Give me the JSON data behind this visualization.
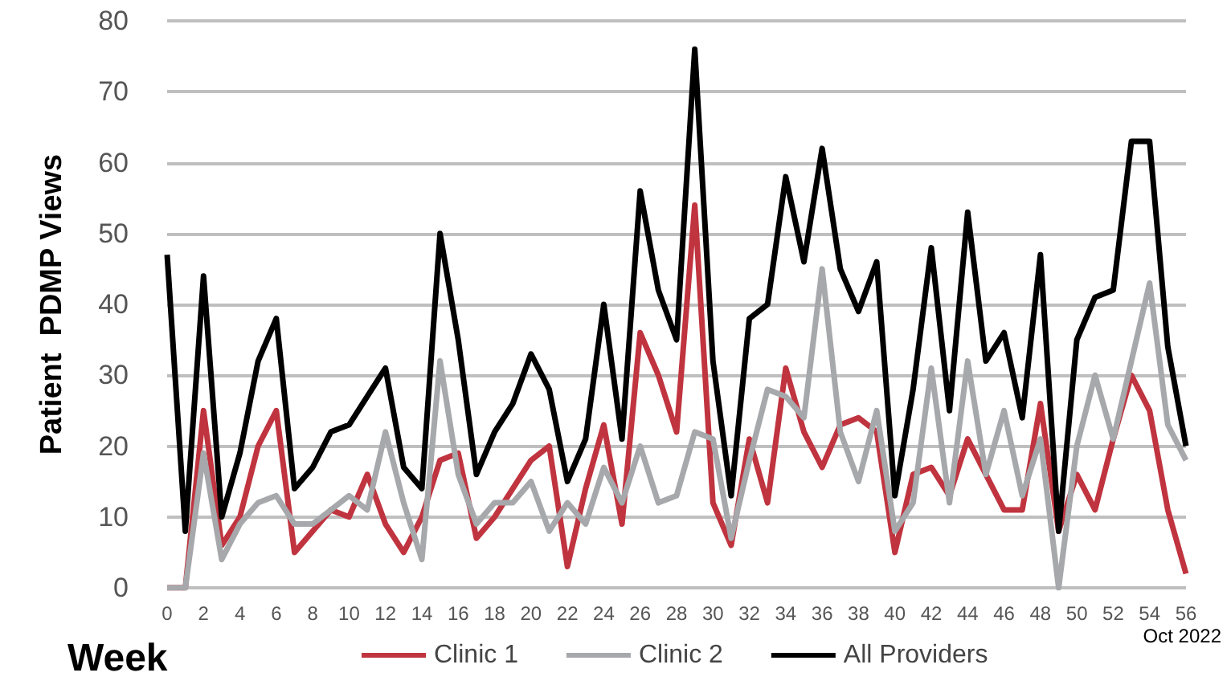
{
  "chart_data": {
    "type": "line",
    "xlabel": "Week",
    "ylabel": "Patient  PDMP Views",
    "annotations": [
      "Oct 2022"
    ],
    "x": [
      0,
      1,
      2,
      3,
      4,
      5,
      6,
      7,
      8,
      9,
      10,
      11,
      12,
      13,
      14,
      15,
      16,
      17,
      18,
      19,
      20,
      21,
      22,
      23,
      24,
      25,
      26,
      27,
      28,
      29,
      30,
      31,
      32,
      33,
      34,
      35,
      36,
      37,
      38,
      39,
      40,
      41,
      42,
      43,
      44,
      45,
      46,
      47,
      48,
      49,
      50,
      51,
      52,
      53,
      54,
      55,
      56
    ],
    "xlim": [
      0,
      56
    ],
    "xticks": [
      0,
      2,
      4,
      6,
      8,
      10,
      12,
      14,
      16,
      18,
      20,
      22,
      24,
      26,
      28,
      30,
      32,
      34,
      36,
      38,
      40,
      42,
      44,
      46,
      48,
      50,
      52,
      54,
      56
    ],
    "ylim": [
      0,
      80
    ],
    "yticks": [
      0,
      10,
      20,
      30,
      40,
      50,
      60,
      70,
      80
    ],
    "grid": "y",
    "legend": "bottom",
    "marker": "none",
    "line_style": "solid",
    "series": [
      {
        "name": "Clinic 1",
        "color": "#c0343f",
        "values": [
          0,
          0,
          25,
          6,
          10,
          20,
          25,
          5,
          8,
          11,
          10,
          16,
          9,
          5,
          10,
          18,
          19,
          7,
          10,
          14,
          18,
          20,
          3,
          14,
          23,
          9,
          36,
          30,
          22,
          54,
          12,
          6,
          21,
          12,
          31,
          22,
          17,
          23,
          24,
          22,
          5,
          16,
          17,
          13,
          21,
          16,
          11,
          11,
          26,
          8,
          16,
          11,
          21,
          30,
          25,
          11,
          2
        ]
      },
      {
        "name": "Clinic 2",
        "color": "#a6a8ab",
        "values": [
          0,
          0,
          19,
          4,
          9,
          12,
          13,
          9,
          9,
          11,
          13,
          11,
          22,
          12,
          4,
          32,
          16,
          9,
          12,
          12,
          15,
          8,
          12,
          9,
          17,
          12,
          20,
          12,
          13,
          22,
          21,
          7,
          18,
          28,
          27,
          24,
          45,
          22,
          15,
          25,
          8,
          12,
          31,
          12,
          32,
          16,
          25,
          13,
          21,
          0,
          20,
          30,
          21,
          32,
          43,
          23,
          18
        ]
      },
      {
        "name": "All Providers",
        "color": "#000000",
        "values": [
          47,
          8,
          44,
          10,
          19,
          32,
          38,
          14,
          17,
          22,
          23,
          27,
          31,
          17,
          14,
          50,
          35,
          16,
          22,
          26,
          33,
          28,
          15,
          21,
          40,
          21,
          56,
          42,
          35,
          76,
          32,
          13,
          38,
          40,
          58,
          46,
          62,
          45,
          39,
          46,
          13,
          28,
          48,
          25,
          53,
          32,
          36,
          24,
          47,
          8,
          35,
          41,
          42,
          63,
          63,
          34,
          20
        ]
      }
    ]
  }
}
